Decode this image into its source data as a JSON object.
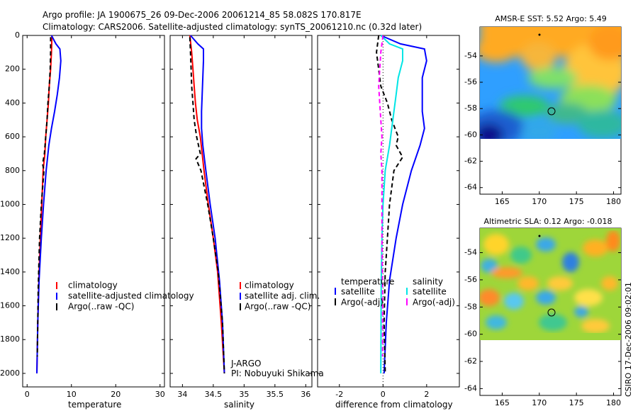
{
  "header": {
    "line1": "Argo profile: JA 1900675_26 09-Dec-2006 20061214_85 58.082S 170.817E",
    "line2": "Climatology: CARS2006. Satellite-adjusted climatology: synTS_20061210.nc (0.32d later)"
  },
  "credit": "CSIRO 17-Dec-2006 09:02:01",
  "colors": {
    "climatology": "#ff0000",
    "satellite": "#0000ff",
    "argo": "#000000",
    "sat_salinity": "#00e5e5",
    "argo_salinity": "#ff00ff"
  },
  "chart_data": [
    {
      "type": "line",
      "id": "temperature",
      "xlabel": "temperature",
      "ylabel": "",
      "xlim": [
        -1,
        31
      ],
      "ylim": [
        2080,
        0
      ],
      "xticks": [
        0,
        10,
        20,
        30
      ],
      "yticks": [
        0,
        200,
        400,
        600,
        800,
        1000,
        1200,
        1400,
        1600,
        1800,
        2000
      ],
      "legend": [
        "climatology",
        "satellite-adjusted climatology",
        "Argo(..raw -QC)"
      ],
      "legend_position": "bottom-right",
      "series": [
        {
          "name": "climatology",
          "color": "#ff0000",
          "dash": "",
          "x": [
            5.6,
            5.5,
            5.3,
            5.0,
            4.8,
            4.5,
            4.2,
            4.0,
            3.6,
            3.3,
            3.0,
            2.7,
            2.4,
            2.2
          ],
          "y": [
            0,
            100,
            200,
            300,
            400,
            500,
            600,
            700,
            800,
            1000,
            1200,
            1400,
            1700,
            2000
          ]
        },
        {
          "name": "satellite-adjusted climatology",
          "color": "#0000ff",
          "dash": "",
          "x": [
            5.5,
            6.5,
            7.4,
            7.6,
            7.3,
            6.8,
            6.2,
            5.5,
            4.9,
            4.3,
            3.7,
            3.2,
            2.7,
            2.4,
            2.2
          ],
          "y": [
            0,
            50,
            80,
            150,
            250,
            350,
            450,
            550,
            650,
            800,
            1000,
            1200,
            1450,
            1700,
            2000
          ]
        },
        {
          "name": "Argo(..raw -QC)",
          "color": "#000000",
          "dash": "6,4",
          "x": [
            5.3,
            5.3,
            5.2,
            5.0,
            4.7,
            4.5,
            4.2,
            3.9,
            3.5,
            3.8,
            3.2,
            2.8,
            2.5,
            2.3
          ],
          "y": [
            10,
            100,
            200,
            300,
            400,
            500,
            600,
            700,
            760,
            800,
            1000,
            1200,
            1500,
            1900
          ]
        }
      ]
    },
    {
      "type": "line",
      "id": "salinity",
      "xlabel": "salinity",
      "xlim": [
        33.8,
        36.1
      ],
      "ylim": [
        2080,
        0
      ],
      "xticks": [
        34,
        34.5,
        35,
        35.5,
        36
      ],
      "legend": [
        "climatology",
        "satellite adj. clim.",
        "Argo(..raw -QC)"
      ],
      "legend_position": "bottom-right",
      "annotation": [
        "J-ARGO",
        "PI: Nobuyuki Shikama"
      ],
      "series": [
        {
          "name": "climatology",
          "color": "#ff0000",
          "dash": "",
          "x": [
            34.12,
            34.15,
            34.17,
            34.19,
            34.21,
            34.24,
            34.29,
            34.35,
            34.42,
            34.5,
            34.57,
            34.63,
            34.68
          ],
          "y": [
            0,
            100,
            200,
            300,
            400,
            500,
            600,
            800,
            1000,
            1200,
            1400,
            1700,
            2000
          ]
        },
        {
          "name": "satellite adj. clim.",
          "color": "#0000ff",
          "dash": "",
          "x": [
            34.13,
            34.25,
            34.34,
            34.34,
            34.33,
            34.32,
            34.31,
            34.31,
            34.33,
            34.38,
            34.45,
            34.53,
            34.6,
            34.65,
            34.68
          ],
          "y": [
            0,
            50,
            80,
            150,
            250,
            350,
            450,
            550,
            650,
            800,
            1000,
            1200,
            1450,
            1700,
            2000
          ]
        },
        {
          "name": "Argo(..raw -QC)",
          "color": "#000000",
          "dash": "6,4",
          "x": [
            34.12,
            34.13,
            34.14,
            34.15,
            34.17,
            34.19,
            34.23,
            34.29,
            34.22,
            34.3,
            34.41,
            34.5,
            34.58,
            34.65,
            34.68
          ],
          "y": [
            10,
            100,
            200,
            300,
            400,
            500,
            600,
            700,
            730,
            800,
            1000,
            1200,
            1400,
            1700,
            2000
          ]
        }
      ]
    },
    {
      "type": "line",
      "id": "difference",
      "xlabel": "difference from climatology",
      "xlim": [
        -3,
        3.5
      ],
      "ylim": [
        2080,
        0
      ],
      "xticks": [
        -2,
        0,
        2
      ],
      "legend": [
        "temperature",
        "satellite",
        "Argo(-adj)",
        "salinity",
        "satellite",
        "Argo(-adj)"
      ],
      "legend_position": "bottom",
      "series": [
        {
          "name": "satellite",
          "group": "temperature",
          "color": "#0000ff",
          "dash": "",
          "x": [
            -0.1,
            0.8,
            1.9,
            2.0,
            1.8,
            1.8,
            1.8,
            1.9,
            1.7,
            1.3,
            0.9,
            0.6,
            0.3,
            0.15,
            0.05
          ],
          "y": [
            0,
            50,
            80,
            150,
            250,
            350,
            450,
            550,
            650,
            800,
            1000,
            1200,
            1450,
            1700,
            2000
          ]
        },
        {
          "name": "Argo(-adj)",
          "group": "temperature",
          "color": "#000000",
          "dash": "6,4",
          "x": [
            -0.2,
            -0.3,
            -0.2,
            -0.1,
            0.2,
            0.4,
            0.7,
            0.6,
            0.9,
            0.5,
            0.3,
            0.2,
            0.1,
            0.05,
            0.1
          ],
          "y": [
            0,
            100,
            200,
            300,
            400,
            500,
            600,
            650,
            720,
            800,
            1000,
            1200,
            1400,
            1700,
            1990
          ]
        },
        {
          "name": "satellite",
          "group": "salinity",
          "color": "#00e5e5",
          "dash": "",
          "x": [
            -0.1,
            0.3,
            0.9,
            0.9,
            0.7,
            0.6,
            0.5,
            0.4,
            0.3,
            0.1,
            0.0,
            -0.05,
            -0.08,
            -0.09,
            -0.1
          ],
          "y": [
            0,
            50,
            80,
            150,
            250,
            350,
            450,
            550,
            650,
            800,
            1000,
            1200,
            1450,
            1700,
            2000
          ]
        },
        {
          "name": "Argo(-adj)",
          "group": "salinity",
          "color": "#ff00ff",
          "dash": "6,4",
          "x": [
            0.0,
            -0.1,
            -0.15,
            -0.2,
            -0.15,
            -0.1,
            -0.05,
            -0.1,
            -0.05,
            -0.05,
            -0.05,
            -0.02,
            -0.02
          ],
          "y": [
            0,
            100,
            200,
            300,
            400,
            500,
            600,
            700,
            800,
            1000,
            1200,
            1500,
            1900
          ]
        }
      ]
    },
    {
      "type": "heatmap",
      "id": "sst_map",
      "title": "AMSR-E SST: 5.52 Argo: 5.49",
      "xlim": [
        162,
        181
      ],
      "ylim": [
        -64.5,
        -51.8
      ],
      "xticks": [
        165,
        170,
        175,
        180
      ],
      "yticks": [
        -54,
        -56,
        -58,
        -60,
        -62,
        -64
      ],
      "data_extent_lat": [
        -60,
        -52
      ],
      "marker_lat": -58.082,
      "marker_lon": 170.817
    },
    {
      "type": "heatmap",
      "id": "sla_map",
      "title": "Altimetric SLA: 0.12 Argo: -0.018",
      "xlim": [
        162,
        181
      ],
      "ylim": [
        -64.5,
        -52.2
      ],
      "xticks": [
        165,
        170,
        175,
        180
      ],
      "yticks": [
        -54,
        -56,
        -58,
        -60,
        -62,
        -64
      ],
      "data_extent_lat": [
        -60,
        -52.3
      ],
      "marker_lat": -58.082,
      "marker_lon": 170.817
    }
  ]
}
